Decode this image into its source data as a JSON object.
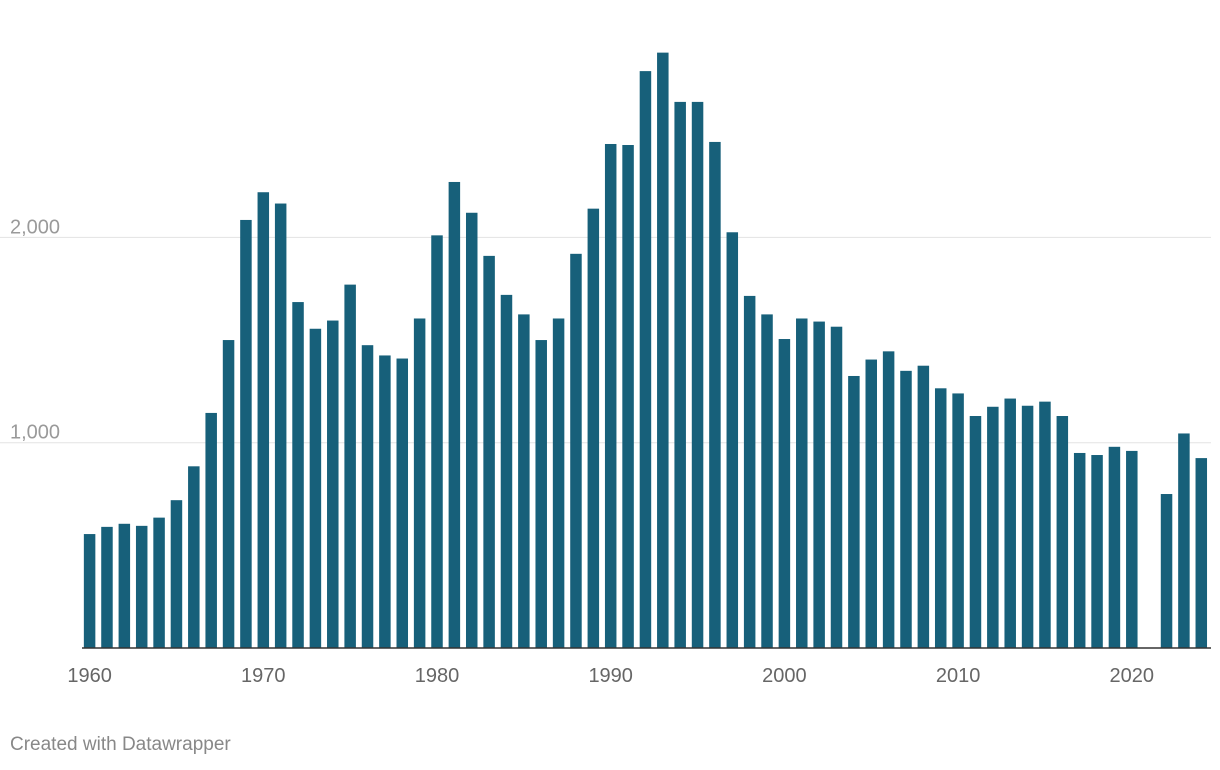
{
  "chart_data": {
    "type": "bar",
    "x": [
      1960,
      1961,
      1962,
      1963,
      1964,
      1965,
      1966,
      1967,
      1968,
      1969,
      1970,
      1971,
      1972,
      1973,
      1974,
      1975,
      1976,
      1977,
      1978,
      1979,
      1980,
      1981,
      1982,
      1983,
      1984,
      1985,
      1986,
      1987,
      1988,
      1989,
      1990,
      1991,
      1992,
      1993,
      1994,
      1995,
      1996,
      1997,
      1998,
      1999,
      2000,
      2001,
      2002,
      2003,
      2004,
      2005,
      2006,
      2007,
      2008,
      2009,
      2010,
      2011,
      2012,
      2013,
      2014,
      2015,
      2016,
      2017,
      2018,
      2019,
      2020,
      2021,
      2022,
      2023,
      2024
    ],
    "values": [
      555,
      590,
      605,
      595,
      635,
      720,
      885,
      1145,
      1500,
      2085,
      2220,
      2165,
      1685,
      1555,
      1595,
      1770,
      1475,
      1425,
      1410,
      1605,
      2010,
      2270,
      2120,
      1910,
      1720,
      1625,
      1500,
      1605,
      1920,
      2140,
      2455,
      2450,
      2810,
      2900,
      2660,
      2660,
      2465,
      2025,
      1715,
      1625,
      1505,
      1605,
      1590,
      1565,
      1325,
      1405,
      1445,
      1350,
      1375,
      1265,
      1240,
      1130,
      1175,
      1215,
      1180,
      1200,
      1130,
      950,
      940,
      980,
      960,
      null,
      750,
      1045,
      925
    ],
    "xticks": [
      1960,
      1970,
      1980,
      1990,
      2000,
      2010,
      2020
    ],
    "xtick_labels": [
      "1960",
      "1970",
      "1980",
      "1990",
      "2000",
      "2010",
      "2020"
    ],
    "yticks": [
      1000,
      2000
    ],
    "ytick_labels": [
      "1,000",
      "2,000"
    ],
    "ylim": [
      0,
      3000
    ],
    "grid": true,
    "bar_color": "#17607a",
    "title": "",
    "xlabel": "",
    "ylabel": ""
  },
  "footer": {
    "credit": "Created with Datawrapper"
  }
}
